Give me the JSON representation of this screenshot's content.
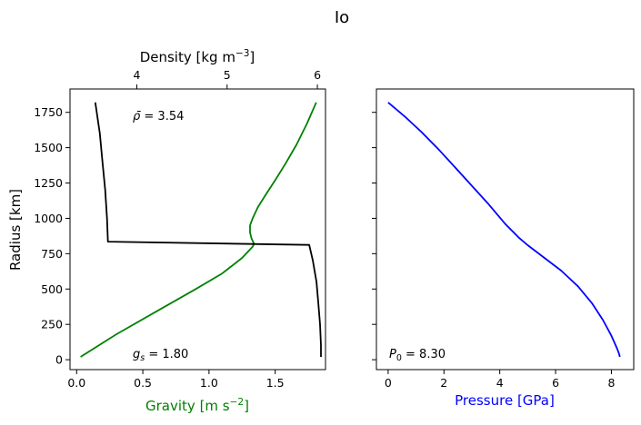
{
  "figure": {
    "title": "Io"
  },
  "chart_data": [
    {
      "type": "line",
      "panel": "left",
      "ylabel": "Radius [km]",
      "ylim": [
        -70,
        1915
      ],
      "yticks": [
        0,
        250,
        500,
        750,
        1000,
        1250,
        1500,
        1750
      ],
      "ytick_labels": [
        "0",
        "250",
        "500",
        "750",
        "1000",
        "1250",
        "1500",
        "1750"
      ],
      "bottom_axis": {
        "label_text": "Gravity [m s",
        "label_sup": "−2",
        "label_close": "]",
        "label_color": "#008000",
        "xlim": [
          -0.05,
          1.88
        ],
        "ticks": [
          0,
          0.5,
          1,
          1.5
        ],
        "tick_labels": [
          "0.0",
          "0.5",
          "1.0",
          "1.5"
        ]
      },
      "top_axis": {
        "label_text": "Density [kg m",
        "label_sup": "−3",
        "label_close": "]",
        "label_color": "#000000",
        "xlim": [
          3.26,
          6.09
        ],
        "ticks": [
          4,
          5,
          6
        ],
        "tick_labels": [
          "4",
          "5",
          "6"
        ]
      },
      "series": [
        {
          "axis": "bottom",
          "color": "#008000",
          "x": [
            0.03,
            0.3,
            0.6,
            0.9,
            1.1,
            1.25,
            1.33,
            1.34,
            1.32,
            1.31,
            1.31,
            1.33,
            1.37,
            1.43,
            1.5,
            1.58,
            1.66,
            1.74,
            1.81
          ],
          "y": [
            20,
            180,
            340,
            500,
            610,
            720,
            800,
            820,
            860,
            900,
            950,
            1000,
            1080,
            1170,
            1270,
            1390,
            1520,
            1670,
            1820
          ]
        },
        {
          "axis": "top",
          "color": "#000000",
          "x": [
            3.54,
            3.59,
            3.62,
            3.65,
            3.67,
            3.68,
            5.91,
            5.95,
            5.99,
            6.01,
            6.03,
            6.04,
            6.04
          ],
          "y": [
            1820,
            1600,
            1400,
            1200,
            1000,
            835,
            812,
            700,
            550,
            400,
            250,
            100,
            20
          ]
        }
      ],
      "annotations": [
        {
          "label": "ρ̄",
          "value": " = 3.54"
        },
        {
          "label": "g",
          "sub": "s",
          "value": " = 1.80"
        }
      ]
    },
    {
      "type": "line",
      "panel": "right",
      "ylim": [
        -70,
        1915
      ],
      "yticks": [
        0,
        250,
        500,
        750,
        1000,
        1250,
        1500,
        1750
      ],
      "bottom_axis": {
        "label_text": "Pressure [GPa]",
        "label_color": "#0000ff",
        "xlim": [
          -0.42,
          8.8
        ],
        "ticks": [
          0,
          2,
          4,
          6,
          8
        ],
        "tick_labels": [
          "0",
          "2",
          "4",
          "6",
          "8"
        ]
      },
      "series": [
        {
          "axis": "bottom",
          "color": "#0000ff",
          "x": [
            0.0,
            0.6,
            1.2,
            1.8,
            2.4,
            3.0,
            3.6,
            4.2,
            4.7,
            5.0,
            5.6,
            6.2,
            6.8,
            7.3,
            7.7,
            8.0,
            8.2,
            8.28,
            8.3
          ],
          "y": [
            1820,
            1720,
            1610,
            1490,
            1360,
            1230,
            1100,
            960,
            860,
            810,
            720,
            630,
            520,
            400,
            280,
            170,
            80,
            40,
            20
          ]
        }
      ],
      "annotations": [
        {
          "label": "P",
          "sub": "0",
          "value": " = 8.30"
        }
      ]
    }
  ]
}
